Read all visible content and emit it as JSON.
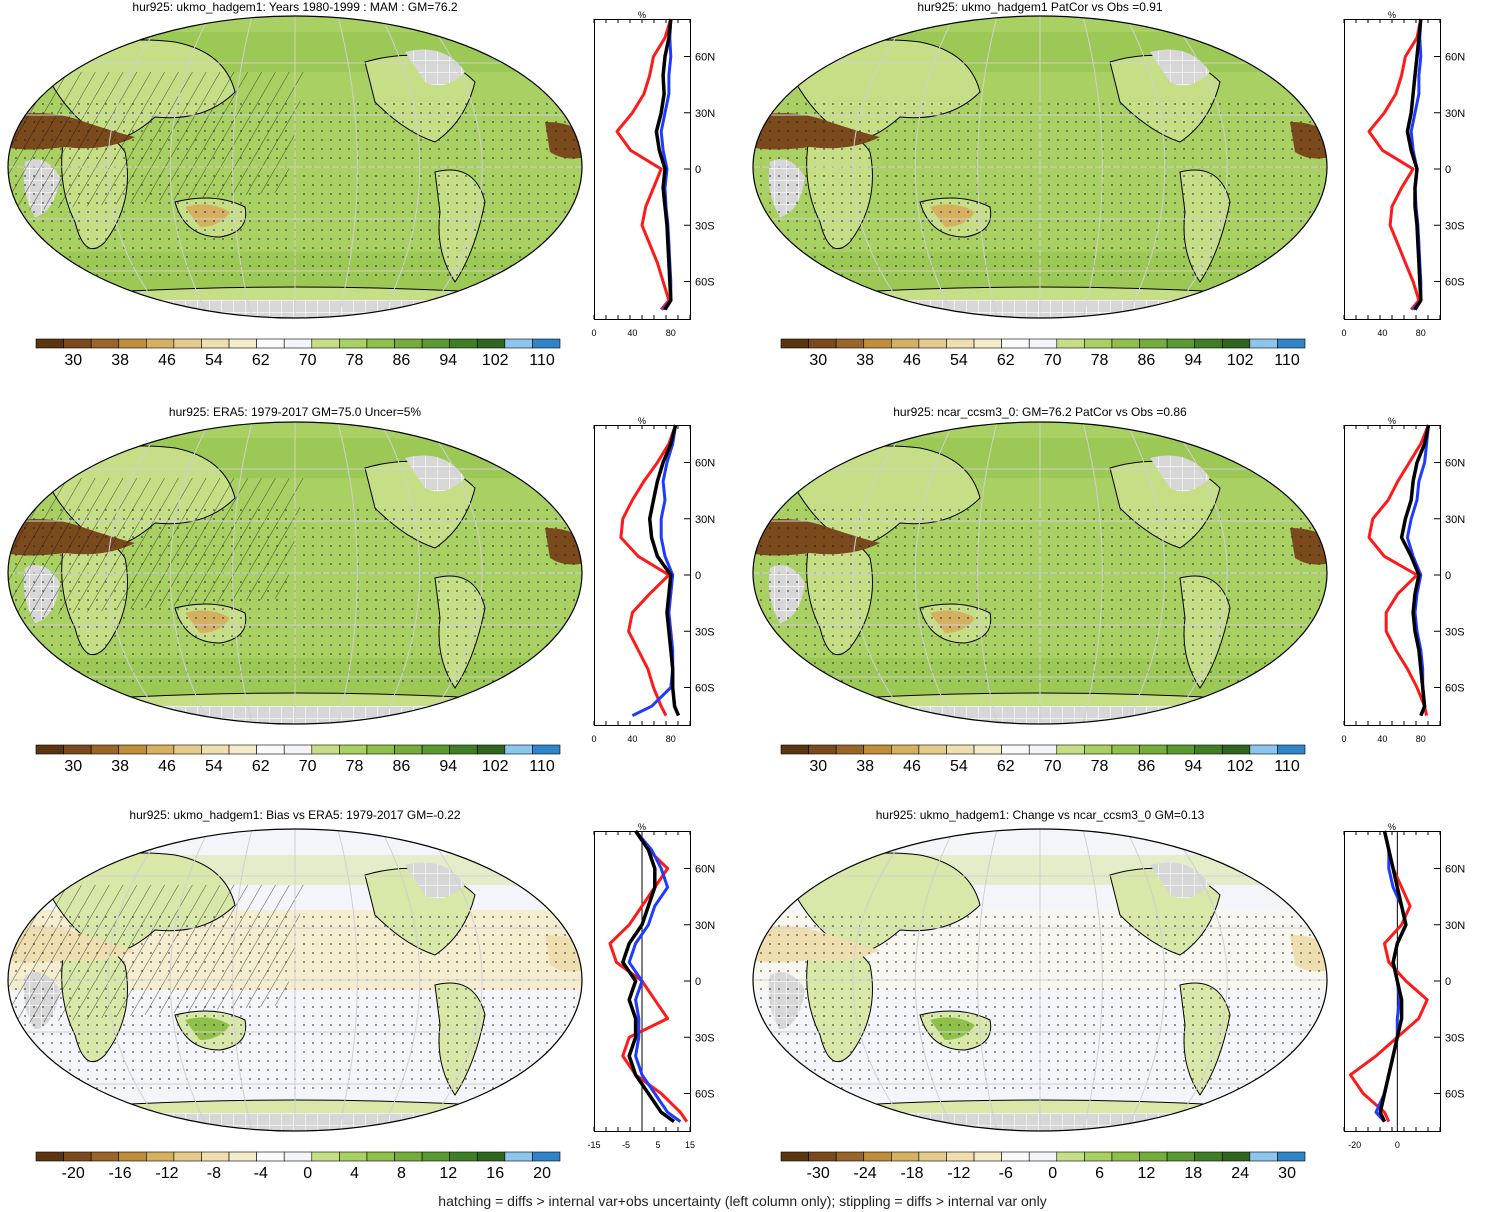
{
  "footnote": "hatching = diffs > internal var+obs uncertainty (left column only); stippling = diffs > internal var only",
  "palettes": {
    "abs": [
      "#5a3510",
      "#7a4a1c",
      "#9a6528",
      "#c08d3a",
      "#d6b061",
      "#e6cc8c",
      "#efdfb0",
      "#f5ecca",
      "#fafafa",
      "#f2f4f7",
      "#c6df86",
      "#a9d063",
      "#8fc04a",
      "#74ad3b",
      "#5b9a30",
      "#3f7d26",
      "#2d661c",
      "#8cc6ec",
      "#2f85c8"
    ],
    "bias": [
      "#5a3510",
      "#7a4a1c",
      "#9a6528",
      "#c08d3a",
      "#d6b061",
      "#e6cc8c",
      "#efdfb0",
      "#f5ecca",
      "#fafafa",
      "#f2f4f7",
      "#c6df86",
      "#a9d063",
      "#8fc04a",
      "#74ad3b",
      "#5b9a30",
      "#3f7d26",
      "#2d661c",
      "#8cc6ec",
      "#2f85c8"
    ]
  },
  "panels": [
    {
      "title": "hur925: ukmo_hadgem1: Years 1980-1999 : MAM : GM=76.2",
      "colorbar": {
        "labels": [
          "30",
          "38",
          "46",
          "54",
          "62",
          "70",
          "78",
          "86",
          "94",
          "102",
          "110"
        ],
        "palette": "abs"
      },
      "profile": {
        "unit": "%",
        "x_ticks": [
          "0",
          "40",
          "80"
        ],
        "xlim": [
          0,
          100
        ],
        "zero_line": false,
        "lat_ticks": [
          "60N",
          "30N",
          "0",
          "30S",
          "60S"
        ],
        "chart_data": {
          "type": "line",
          "x_label": "%",
          "y": [
            80,
            70,
            60,
            50,
            40,
            30,
            20,
            10,
            0,
            -10,
            -20,
            -30,
            -40,
            -50,
            -60,
            -70,
            -75
          ],
          "series": [
            {
              "color": "#000000",
              "values": [
                80,
                78,
                74,
                72,
                73,
                70,
                65,
                68,
                74,
                72,
                74,
                76,
                77,
                78,
                79,
                80,
                74
              ]
            },
            {
              "color": "#1f3bff",
              "values": [
                80,
                79,
                80,
                78,
                78,
                74,
                70,
                72,
                76,
                74,
                75,
                77,
                78,
                79,
                80,
                80,
                72
              ]
            },
            {
              "color": "#ff1a1a",
              "values": [
                80,
                74,
                62,
                58,
                52,
                40,
                24,
                38,
                70,
                62,
                54,
                50,
                58,
                66,
                72,
                78,
                70
              ]
            }
          ]
        }
      }
    },
    {
      "title": "hur925: ukmo_hadgem1 PatCor vs Obs =0.91",
      "colorbar": {
        "labels": [
          "30",
          "38",
          "46",
          "54",
          "62",
          "70",
          "78",
          "86",
          "94",
          "102",
          "110"
        ],
        "palette": "abs"
      },
      "profile": {
        "unit": "%",
        "x_ticks": [
          "0",
          "40",
          "80"
        ],
        "xlim": [
          0,
          100
        ],
        "zero_line": false,
        "lat_ticks": [
          "60N",
          "30N",
          "0",
          "30S",
          "60S"
        ],
        "chart_data": {
          "type": "line",
          "x_label": "%",
          "y": [
            80,
            70,
            60,
            50,
            40,
            30,
            20,
            10,
            0,
            -10,
            -20,
            -30,
            -40,
            -50,
            -60,
            -70,
            -75
          ],
          "series": [
            {
              "color": "#000000",
              "values": [
                80,
                78,
                76,
                74,
                72,
                70,
                66,
                70,
                76,
                74,
                74,
                76,
                77,
                78,
                79,
                80,
                74
              ]
            },
            {
              "color": "#1f3bff",
              "values": [
                80,
                79,
                80,
                78,
                78,
                74,
                70,
                72,
                76,
                74,
                75,
                77,
                78,
                79,
                80,
                80,
                72
              ]
            },
            {
              "color": "#ff1a1a",
              "values": [
                80,
                76,
                64,
                60,
                54,
                42,
                26,
                40,
                72,
                60,
                50,
                48,
                56,
                64,
                72,
                78,
                70
              ]
            }
          ]
        }
      }
    },
    {
      "title": "hur925: ERA5: 1979-2017 GM=75.0 Uncer=5%",
      "colorbar": {
        "labels": [
          "30",
          "38",
          "46",
          "54",
          "62",
          "70",
          "78",
          "86",
          "94",
          "102",
          "110"
        ],
        "palette": "abs"
      },
      "profile": {
        "unit": "%",
        "x_ticks": [
          "0",
          "40",
          "80"
        ],
        "xlim": [
          0,
          100
        ],
        "zero_line": false,
        "lat_ticks": [
          "60N",
          "30N",
          "0",
          "30S",
          "60S"
        ],
        "chart_data": {
          "type": "line",
          "x_label": "%",
          "y": [
            80,
            70,
            60,
            50,
            40,
            30,
            20,
            10,
            0,
            -10,
            -20,
            -30,
            -40,
            -50,
            -60,
            -70,
            -75
          ],
          "series": [
            {
              "color": "#000000",
              "values": [
                85,
                80,
                72,
                66,
                62,
                58,
                60,
                66,
                80,
                78,
                76,
                78,
                80,
                82,
                82,
                84,
                88
              ]
            },
            {
              "color": "#1f3bff",
              "values": [
                85,
                82,
                76,
                72,
                74,
                70,
                70,
                74,
                82,
                80,
                78,
                80,
                82,
                82,
                80,
                60,
                40
              ]
            },
            {
              "color": "#ff1a1a",
              "values": [
                85,
                78,
                66,
                52,
                40,
                30,
                28,
                46,
                78,
                58,
                40,
                36,
                46,
                56,
                62,
                70,
                75
              ]
            }
          ]
        }
      }
    },
    {
      "title": "hur925: ncar_ccsm3_0: GM=76.2 PatCor vs Obs =0.86",
      "colorbar": {
        "labels": [
          "30",
          "38",
          "46",
          "54",
          "62",
          "70",
          "78",
          "86",
          "94",
          "102",
          "110"
        ],
        "palette": "abs"
      },
      "profile": {
        "unit": "%",
        "x_ticks": [
          "0",
          "40",
          "80"
        ],
        "xlim": [
          0,
          100
        ],
        "zero_line": false,
        "lat_ticks": [
          "60N",
          "30N",
          "0",
          "30S",
          "60S"
        ],
        "chart_data": {
          "type": "line",
          "x_label": "%",
          "y": [
            80,
            70,
            60,
            50,
            40,
            30,
            20,
            10,
            0,
            -10,
            -20,
            -30,
            -40,
            -50,
            -60,
            -70,
            -75
          ],
          "series": [
            {
              "color": "#000000",
              "values": [
                88,
                84,
                76,
                72,
                70,
                64,
                60,
                70,
                78,
                74,
                72,
                74,
                78,
                80,
                82,
                84,
                80
              ]
            },
            {
              "color": "#1f3bff",
              "values": [
                88,
                86,
                84,
                78,
                76,
                70,
                66,
                72,
                80,
                76,
                74,
                76,
                80,
                82,
                82,
                84,
                80
              ]
            },
            {
              "color": "#ff1a1a",
              "values": [
                88,
                80,
                68,
                56,
                46,
                30,
                26,
                42,
                76,
                56,
                44,
                44,
                54,
                66,
                76,
                84,
                86
              ]
            }
          ]
        }
      }
    },
    {
      "title": "hur925: ukmo_hadgem1: Bias vs ERA5: 1979-2017 GM=-0.22",
      "colorbar": {
        "labels": [
          "-20",
          "-16",
          "-12",
          "-8",
          "-4",
          "0",
          "4",
          "8",
          "12",
          "16",
          "20"
        ],
        "palette": "bias"
      },
      "profile": {
        "unit": "%",
        "x_ticks": [
          "-15",
          "-5",
          "5",
          "15"
        ],
        "xlim": [
          -15,
          15
        ],
        "zero_line": true,
        "lat_ticks": [
          "60N",
          "30N",
          "0",
          "30S",
          "60S"
        ],
        "chart_data": {
          "type": "line",
          "x_label": "%",
          "y": [
            80,
            70,
            60,
            50,
            40,
            30,
            20,
            10,
            0,
            -10,
            -20,
            -30,
            -40,
            -50,
            -60,
            -70,
            -75
          ],
          "series": [
            {
              "color": "#000000",
              "values": [
                -2,
                2,
                4,
                4,
                2,
                0,
                -4,
                -6,
                -2,
                -4,
                -2,
                -2,
                -4,
                -2,
                2,
                6,
                10
              ]
            },
            {
              "color": "#1f3bff",
              "values": [
                -2,
                3,
                6,
                8,
                4,
                2,
                -2,
                -4,
                0,
                -2,
                -1,
                -1,
                -2,
                0,
                4,
                8,
                12
              ]
            },
            {
              "color": "#ff1a1a",
              "values": [
                -2,
                2,
                8,
                4,
                0,
                -4,
                -10,
                -8,
                0,
                4,
                8,
                -4,
                -6,
                -2,
                6,
                12,
                14
              ]
            }
          ]
        }
      }
    },
    {
      "title": "hur925: ukmo_hadgem1: Change vs ncar_ccsm3_0 GM=0.13",
      "colorbar": {
        "labels": [
          "-30",
          "-24",
          "-18",
          "-12",
          "-6",
          "0",
          "6",
          "12",
          "18",
          "24",
          "30"
        ],
        "palette": "bias"
      },
      "profile": {
        "unit": "%",
        "x_ticks": [
          "-20",
          "0"
        ],
        "xlim": [
          -25,
          20
        ],
        "zero_line": true,
        "lat_ticks": [
          "60N",
          "30N",
          "0",
          "30S",
          "60S"
        ],
        "chart_data": {
          "type": "line",
          "x_label": "%",
          "y": [
            80,
            70,
            60,
            50,
            40,
            30,
            20,
            10,
            0,
            -10,
            -20,
            -30,
            -40,
            -50,
            -60,
            -70,
            -75
          ],
          "series": [
            {
              "color": "#000000",
              "values": [
                -6,
                -4,
                -2,
                0,
                2,
                4,
                0,
                -2,
                0,
                2,
                2,
                0,
                -2,
                -4,
                -6,
                -8,
                -6
              ]
            },
            {
              "color": "#1f3bff",
              "values": [
                -6,
                -4,
                -4,
                -2,
                2,
                4,
                0,
                -2,
                0,
                1,
                0,
                0,
                -2,
                -4,
                -6,
                -10,
                -6
              ]
            },
            {
              "color": "#ff1a1a",
              "values": [
                -6,
                -4,
                -2,
                2,
                6,
                2,
                -6,
                -4,
                4,
                14,
                10,
                0,
                -10,
                -22,
                -16,
                -6,
                -4
              ]
            }
          ]
        }
      }
    }
  ]
}
